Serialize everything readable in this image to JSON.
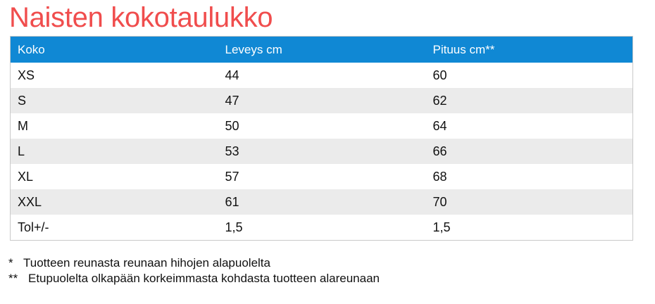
{
  "title": "Naisten kokotaulukko",
  "table": {
    "headers": [
      "Koko",
      "Leveys cm",
      "Pituus cm**"
    ],
    "rows": [
      [
        "XS",
        "44",
        "60"
      ],
      [
        "S",
        "47",
        "62"
      ],
      [
        "M",
        "50",
        "64"
      ],
      [
        "L",
        "53",
        "66"
      ],
      [
        "XL",
        "57",
        "68"
      ],
      [
        "XXL",
        "61",
        "70"
      ],
      [
        "Tol+/-",
        "1,5",
        "1,5"
      ]
    ]
  },
  "footnotes": [
    {
      "mark": "*",
      "text": "Tuotteen reunasta reunaan hihojen alapuolelta"
    },
    {
      "mark": "**",
      "text": "Etupuolelta olkapään korkeimmasta kohdasta tuotteen alareunaan"
    }
  ],
  "colors": {
    "title": "#f04d4d",
    "header_bg": "#1088d4",
    "header_text": "#ffffff",
    "stripe": "#ebebeb"
  }
}
